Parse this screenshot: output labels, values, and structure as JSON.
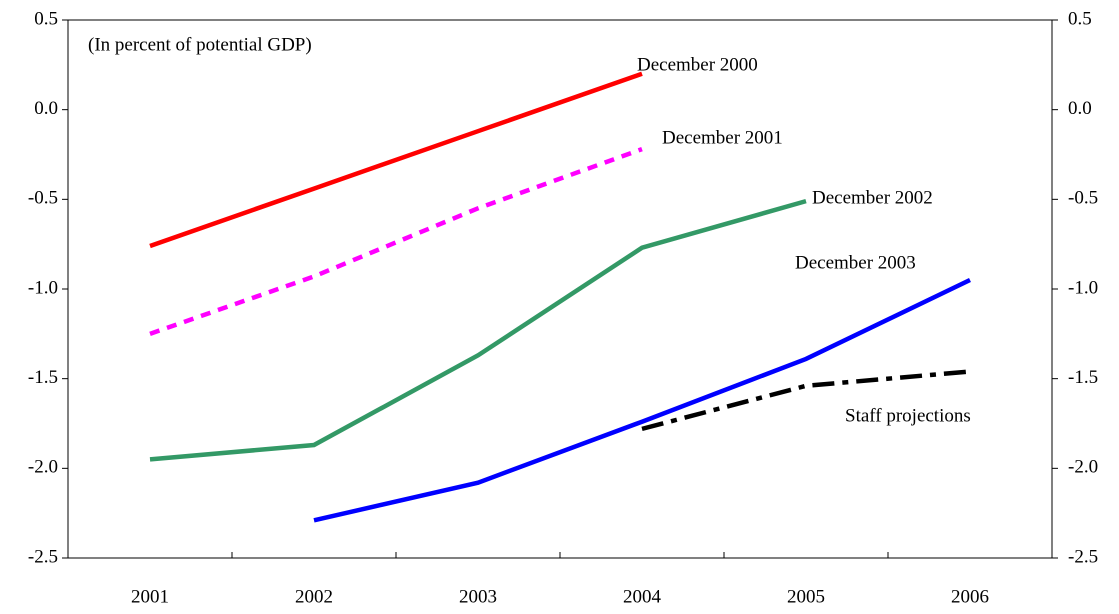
{
  "chart_data": {
    "type": "line",
    "annotation": "(In percent of potential GDP)",
    "categories": [
      "2001",
      "2002",
      "2003",
      "2004",
      "2005",
      "2006"
    ],
    "series": [
      {
        "name": "December 2000",
        "color": "#ff0000",
        "style": "solid",
        "values": [
          -0.76,
          -0.44,
          -0.12,
          0.2,
          null,
          null
        ]
      },
      {
        "name": "December 2001",
        "color": "#ff00ff",
        "style": "dotted",
        "values": [
          -1.25,
          -0.93,
          -0.55,
          -0.22,
          null,
          null
        ]
      },
      {
        "name": "December 2002",
        "color": "#339966",
        "style": "solid",
        "values": [
          -1.95,
          -1.87,
          -1.37,
          -0.77,
          -0.51,
          null
        ]
      },
      {
        "name": "December 2003",
        "color": "#0000ff",
        "style": "solid",
        "values": [
          null,
          -2.29,
          -2.08,
          -1.74,
          -1.39,
          -0.95
        ]
      },
      {
        "name": "Staff projections",
        "color": "#000000",
        "style": "dashdot",
        "values": [
          null,
          null,
          null,
          -1.78,
          -1.54,
          -1.46
        ]
      }
    ],
    "ylim": [
      -2.5,
      0.5
    ],
    "yticks": [
      -2.5,
      {
        "value": -2,
        "label": "-2.0"
      },
      -1.5,
      {
        "value": -1,
        "label": "-1.0"
      },
      -0.5,
      {
        "value": 0,
        "label": "0.0"
      },
      0.5
    ],
    "grid": false
  }
}
